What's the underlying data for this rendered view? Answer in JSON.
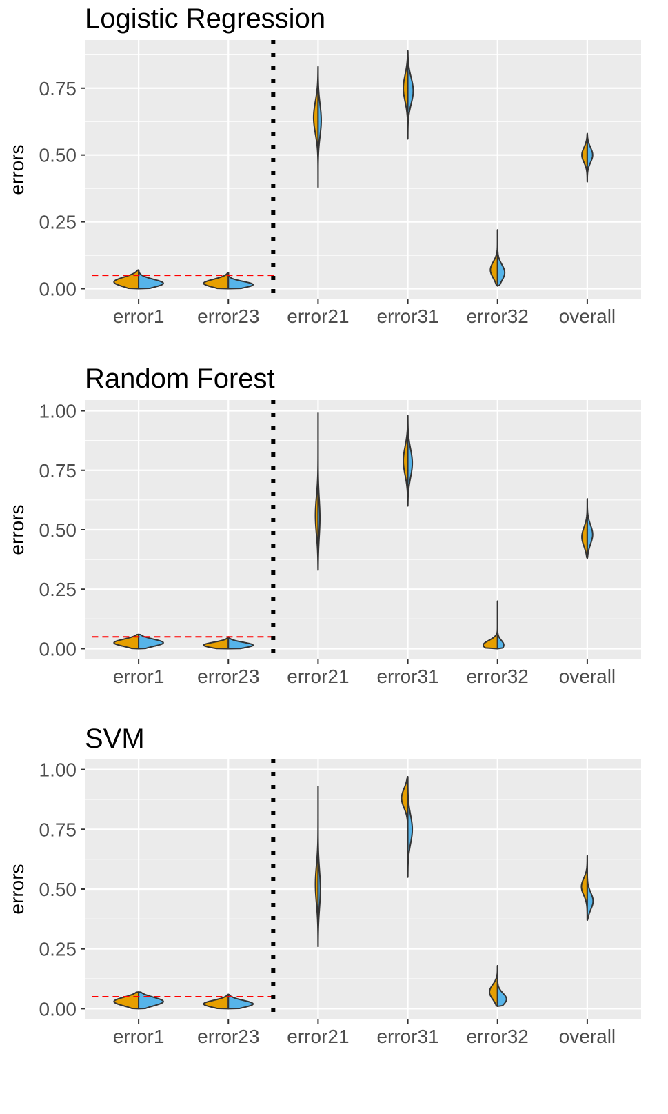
{
  "chart_data": [
    {
      "type": "violin",
      "title": "Logistic Regression",
      "xlabel": "",
      "ylabel": "errors",
      "categories": [
        "error1",
        "error23",
        "error21",
        "error31",
        "error32",
        "overall"
      ],
      "yticks": [
        "0.00",
        "0.25",
        "0.50",
        "0.75"
      ],
      "ylim": [
        -0.04,
        0.93
      ],
      "reference_line": 0.05,
      "divider_after": "error23",
      "colors": {
        "group_a": "#E69F00",
        "group_b": "#56B4E9",
        "panel_bg": "#EBEBEB",
        "grid": "#FFFFFF",
        "reference": "#FF0000",
        "outline": "#333333"
      },
      "violins": [
        {
          "category": "error1",
          "lo": 0.0,
          "hi": 0.07,
          "a": {
            "median": 0.025,
            "spread": 0.018,
            "width": 0.55
          },
          "b": {
            "median": 0.02,
            "spread": 0.015,
            "width": 0.55
          }
        },
        {
          "category": "error23",
          "lo": 0.0,
          "hi": 0.06,
          "a": {
            "median": 0.02,
            "spread": 0.015,
            "width": 0.55
          },
          "b": {
            "median": 0.015,
            "spread": 0.012,
            "width": 0.55
          }
        },
        {
          "category": "error21",
          "lo": 0.38,
          "hi": 0.83,
          "a": {
            "median": 0.64,
            "spread": 0.06,
            "width": 0.1
          },
          "b": {
            "median": 0.63,
            "spread": 0.06,
            "width": 0.07
          }
        },
        {
          "category": "error31",
          "lo": 0.56,
          "hi": 0.89,
          "a": {
            "median": 0.75,
            "spread": 0.05,
            "width": 0.1
          },
          "b": {
            "median": 0.74,
            "spread": 0.05,
            "width": 0.12
          }
        },
        {
          "category": "error32",
          "lo": 0.01,
          "hi": 0.22,
          "a": {
            "median": 0.07,
            "spread": 0.03,
            "width": 0.16
          },
          "b": {
            "median": 0.06,
            "spread": 0.03,
            "width": 0.16
          }
        },
        {
          "category": "overall",
          "lo": 0.4,
          "hi": 0.58,
          "a": {
            "median": 0.5,
            "spread": 0.028,
            "width": 0.12
          },
          "b": {
            "median": 0.5,
            "spread": 0.028,
            "width": 0.12
          }
        }
      ]
    },
    {
      "type": "violin",
      "title": "Random Forest",
      "xlabel": "",
      "ylabel": "errors",
      "categories": [
        "error1",
        "error23",
        "error21",
        "error31",
        "error32",
        "overall"
      ],
      "yticks": [
        "0.00",
        "0.25",
        "0.50",
        "0.75",
        "1.00"
      ],
      "ylim": [
        -0.045,
        1.045
      ],
      "reference_line": 0.05,
      "divider_after": "error23",
      "colors": {
        "group_a": "#E69F00",
        "group_b": "#56B4E9",
        "panel_bg": "#EBEBEB",
        "grid": "#FFFFFF",
        "reference": "#FF0000",
        "outline": "#333333"
      },
      "violins": [
        {
          "category": "error1",
          "lo": 0.0,
          "hi": 0.06,
          "a": {
            "median": 0.025,
            "spread": 0.015,
            "width": 0.55
          },
          "b": {
            "median": 0.025,
            "spread": 0.015,
            "width": 0.55
          }
        },
        {
          "category": "error23",
          "lo": 0.0,
          "hi": 0.05,
          "a": {
            "median": 0.015,
            "spread": 0.012,
            "width": 0.55
          },
          "b": {
            "median": 0.015,
            "spread": 0.012,
            "width": 0.55
          }
        },
        {
          "category": "error21",
          "lo": 0.33,
          "hi": 0.99,
          "a": {
            "median": 0.56,
            "spread": 0.08,
            "width": 0.06
          },
          "b": {
            "median": 0.55,
            "spread": 0.08,
            "width": 0.04
          }
        },
        {
          "category": "error31",
          "lo": 0.6,
          "hi": 0.98,
          "a": {
            "median": 0.79,
            "spread": 0.06,
            "width": 0.1
          },
          "b": {
            "median": 0.78,
            "spread": 0.06,
            "width": 0.1
          }
        },
        {
          "category": "error32",
          "lo": 0.0,
          "hi": 0.2,
          "a": {
            "median": 0.015,
            "spread": 0.02,
            "width": 0.32
          },
          "b": {
            "median": 0.015,
            "spread": 0.02,
            "width": 0.14
          }
        },
        {
          "category": "overall",
          "lo": 0.38,
          "hi": 0.63,
          "a": {
            "median": 0.47,
            "spread": 0.04,
            "width": 0.12
          },
          "b": {
            "median": 0.48,
            "spread": 0.04,
            "width": 0.12
          }
        }
      ]
    },
    {
      "type": "violin",
      "title": "SVM",
      "xlabel": "",
      "ylabel": "errors",
      "categories": [
        "error1",
        "error23",
        "error21",
        "error31",
        "error32",
        "overall"
      ],
      "yticks": [
        "0.00",
        "0.25",
        "0.50",
        "0.75",
        "1.00"
      ],
      "ylim": [
        -0.045,
        1.045
      ],
      "reference_line": 0.05,
      "divider_after": "error23",
      "colors": {
        "group_a": "#E69F00",
        "group_b": "#56B4E9",
        "panel_bg": "#EBEBEB",
        "grid": "#FFFFFF",
        "reference": "#FF0000",
        "outline": "#333333"
      },
      "violins": [
        {
          "category": "error1",
          "lo": 0.0,
          "hi": 0.07,
          "a": {
            "median": 0.03,
            "spread": 0.018,
            "width": 0.55
          },
          "b": {
            "median": 0.03,
            "spread": 0.018,
            "width": 0.55
          }
        },
        {
          "category": "error23",
          "lo": 0.0,
          "hi": 0.06,
          "a": {
            "median": 0.02,
            "spread": 0.015,
            "width": 0.55
          },
          "b": {
            "median": 0.02,
            "spread": 0.015,
            "width": 0.55
          }
        },
        {
          "category": "error21",
          "lo": 0.26,
          "hi": 0.93,
          "a": {
            "median": 0.52,
            "spread": 0.08,
            "width": 0.06
          },
          "b": {
            "median": 0.5,
            "spread": 0.08,
            "width": 0.05
          }
        },
        {
          "category": "error31",
          "lo": 0.55,
          "hi": 0.97,
          "a": {
            "median": 0.88,
            "spread": 0.04,
            "width": 0.14
          },
          "b": {
            "median": 0.75,
            "spread": 0.06,
            "width": 0.1
          }
        },
        {
          "category": "error32",
          "lo": 0.01,
          "hi": 0.18,
          "a": {
            "median": 0.07,
            "spread": 0.03,
            "width": 0.18
          },
          "b": {
            "median": 0.04,
            "spread": 0.025,
            "width": 0.2
          }
        },
        {
          "category": "overall",
          "lo": 0.37,
          "hi": 0.64,
          "a": {
            "median": 0.51,
            "spread": 0.035,
            "width": 0.13
          },
          "b": {
            "median": 0.45,
            "spread": 0.035,
            "width": 0.13
          }
        }
      ]
    }
  ]
}
